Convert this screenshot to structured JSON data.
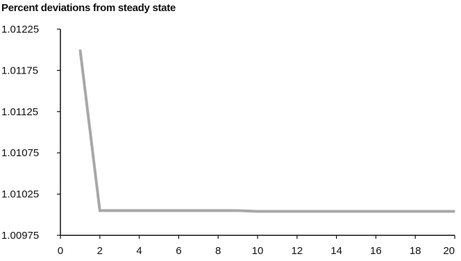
{
  "chart_data": {
    "type": "line",
    "title": "Percent deviations from steady state",
    "xlabel": "",
    "ylabel": "",
    "xlim": [
      0,
      20
    ],
    "ylim": [
      1.00975,
      1.01225
    ],
    "x_ticks": [
      "0",
      "2",
      "4",
      "6",
      "8",
      "10",
      "12",
      "14",
      "16",
      "18",
      "20"
    ],
    "y_ticks": [
      "1.01225",
      "1.01175",
      "1.01125",
      "1.01075",
      "1.01025",
      "1.00975"
    ],
    "grid": false,
    "series": [
      {
        "color": "#a8a8a8",
        "x": [
          1,
          2,
          3,
          4,
          5,
          6,
          7,
          8,
          9,
          10,
          11,
          12,
          13,
          14,
          15,
          16,
          17,
          18,
          19,
          20
        ],
        "values": [
          1.012,
          1.01005,
          1.01005,
          1.01005,
          1.01005,
          1.01005,
          1.01005,
          1.01005,
          1.01005,
          1.01004,
          1.01004,
          1.01004,
          1.01004,
          1.01004,
          1.01004,
          1.01004,
          1.01004,
          1.01004,
          1.01004,
          1.01004
        ]
      }
    ]
  }
}
